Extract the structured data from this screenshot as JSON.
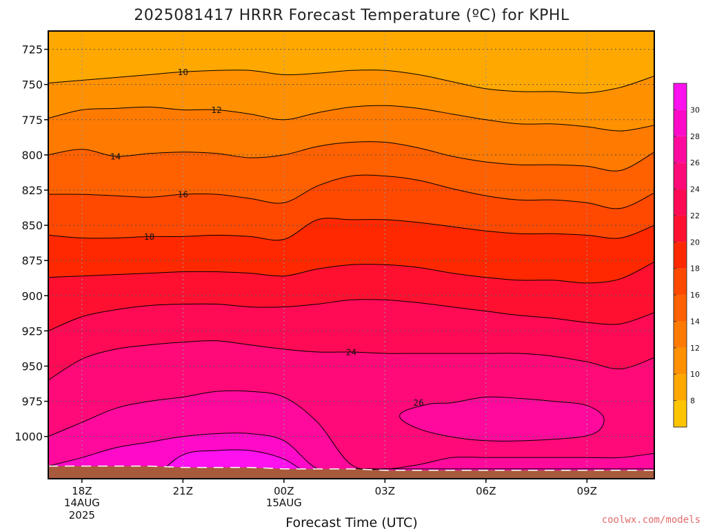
{
  "title": "2025081417 HRRR Forecast Temperature (ºC) for KPHL",
  "credit": "coolwx.com/models",
  "colors": {
    "ground": "#a85a3c",
    "frame": "#000000",
    "grid": "#999999",
    "bands": [
      "#ffc400",
      "#ffa800",
      "#ff9000",
      "#ff7a00",
      "#ff6000",
      "#ff4800",
      "#ff2800",
      "#ff1030",
      "#ff0a55",
      "#ff0a78",
      "#ff0a9c",
      "#ff0ac8",
      "#ff10ee"
    ]
  },
  "chart_data": {
    "type": "contour",
    "title": "2025081417 HRRR Forecast Temperature (ºC) for KPHL",
    "xlabel": "Forecast Time (UTC)",
    "ylabel": "",
    "x_ticks": [
      {
        "hour": 0,
        "label": "18Z",
        "sub": [
          "14AUG",
          "2025"
        ]
      },
      {
        "hour": 3,
        "label": "21Z",
        "sub": []
      },
      {
        "hour": 6,
        "label": "00Z",
        "sub": [
          "15AUG"
        ]
      },
      {
        "hour": 9,
        "label": "03Z",
        "sub": []
      },
      {
        "hour": 12,
        "label": "06Z",
        "sub": []
      },
      {
        "hour": 15,
        "label": "09Z",
        "sub": []
      }
    ],
    "xlim": [
      -1,
      17
    ],
    "y_ticks": [
      725,
      750,
      775,
      800,
      825,
      850,
      875,
      900,
      925,
      950,
      975,
      1000
    ],
    "ylim": [
      712,
      1030
    ],
    "grid": true,
    "colorbar": {
      "ticks": [
        8,
        10,
        12,
        14,
        16,
        18,
        20,
        22,
        24,
        26,
        28,
        30
      ],
      "range": [
        6,
        32
      ],
      "step": 2
    },
    "surface_pressure_hpa": [
      1021,
      1021,
      1021,
      1021,
      1022,
      1022,
      1022,
      1023,
      1023,
      1023,
      1024,
      1024,
      1024,
      1024,
      1024,
      1024,
      1024,
      1024,
      1024
    ],
    "isotherms": [
      {
        "value": 8,
        "pressure": [
          712,
          712,
          712,
          712,
          712,
          712,
          712,
          712,
          712,
          712,
          712,
          712,
          712,
          712,
          712,
          712,
          712,
          712,
          712
        ],
        "label": null
      },
      {
        "value": 10,
        "pressure": [
          749,
          747,
          745,
          743,
          741,
          740,
          740,
          743,
          742,
          740,
          740,
          743,
          748,
          753,
          755,
          755,
          756,
          752,
          744
        ],
        "label": {
          "hour": 3,
          "text": "10"
        }
      },
      {
        "value": 12,
        "pressure": [
          774,
          768,
          767,
          766,
          768,
          768,
          771,
          775,
          770,
          766,
          765,
          767,
          771,
          775,
          778,
          778,
          780,
          783,
          779
        ],
        "label": {
          "hour": 4,
          "text": "12"
        }
      },
      {
        "value": 14,
        "pressure": [
          800,
          796,
          801,
          799,
          798,
          799,
          802,
          800,
          794,
          791,
          791,
          795,
          801,
          805,
          807,
          807,
          808,
          811,
          798
        ],
        "label": {
          "hour": 1,
          "text": "14"
        }
      },
      {
        "value": 16,
        "pressure": [
          828,
          828,
          829,
          830,
          828,
          828,
          831,
          834,
          822,
          815,
          815,
          818,
          824,
          829,
          832,
          832,
          834,
          838,
          827
        ],
        "label": {
          "hour": 3,
          "text": "16"
        }
      },
      {
        "value": 18,
        "pressure": [
          857,
          859,
          859,
          858,
          858,
          857,
          858,
          860,
          846,
          846,
          846,
          848,
          851,
          854,
          856,
          856,
          857,
          859,
          850
        ],
        "label": {
          "hour": 2,
          "text": "18"
        }
      },
      {
        "value": 20,
        "pressure": [
          887,
          886,
          885,
          884,
          883,
          883,
          884,
          886,
          881,
          878,
          878,
          880,
          884,
          887,
          889,
          889,
          891,
          888,
          876
        ],
        "label": null
      },
      {
        "value": 22,
        "pressure": [
          925,
          915,
          910,
          907,
          906,
          906,
          908,
          908,
          906,
          903,
          903,
          905,
          908,
          911,
          914,
          916,
          919,
          920,
          912
        ],
        "label": null
      },
      {
        "value": 24,
        "pressure": [
          960,
          945,
          938,
          935,
          933,
          932,
          935,
          938,
          940,
          940,
          941,
          941,
          941,
          941,
          941,
          943,
          947,
          952,
          944
        ],
        "label": {
          "hour": 8,
          "text": "24"
        }
      },
      {
        "value": 26,
        "pressure": [
          1000,
          990,
          980,
          975,
          972,
          968,
          968,
          972,
          990,
          1020,
          1023,
          1020,
          1015,
          1015,
          1015,
          1015,
          1015,
          1015,
          1012
        ],
        "label": null
      },
      {
        "value": 28,
        "pressure": [
          1021,
          1015,
          1008,
          1004,
          1000,
          998,
          998,
          1003,
          1023,
          1023,
          1023,
          1023,
          1023,
          1023,
          1023,
          1023,
          1023,
          1023,
          1023
        ],
        "label": null
      },
      {
        "value": 30,
        "pressure": [
          1030,
          1030,
          1030,
          1030,
          1013,
          1010,
          1010,
          1016,
          1030,
          1030,
          1030,
          1030,
          1030,
          1030,
          1030,
          1030,
          1030,
          1030,
          1030
        ],
        "label": null
      }
    ],
    "closed_contours": [
      {
        "value": 26,
        "label": {
          "hour": 10,
          "text": "26"
        },
        "points": [
          [
            9.5,
            983
          ],
          [
            10.3,
            977
          ],
          [
            11.0,
            976
          ],
          [
            12.0,
            972
          ],
          [
            13.0,
            973
          ],
          [
            14.0,
            975
          ],
          [
            15.0,
            978
          ],
          [
            15.5,
            987
          ],
          [
            15.2,
            998
          ],
          [
            14.0,
            1002
          ],
          [
            12.0,
            1003
          ],
          [
            10.5,
            998
          ],
          [
            9.6,
            990
          ]
        ],
        "fill_index": 10
      }
    ]
  }
}
